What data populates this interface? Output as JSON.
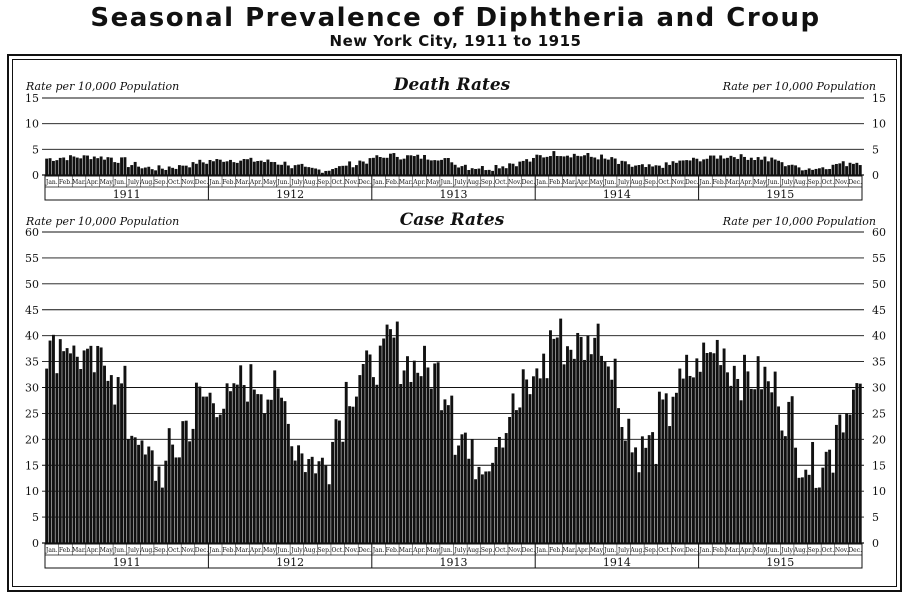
{
  "title": "Seasonal Prevalence of Diphtheria and Croup",
  "subtitle": "New York City, 1911 to 1915",
  "chart_data": [
    {
      "type": "bar",
      "title": "Death Rates",
      "ylabel_left": "Rate per 10,000 Population",
      "ylabel_right": "Rate per 10,000 Population",
      "ylim": [
        0,
        15
      ],
      "yticks": [
        0,
        5,
        10,
        15
      ],
      "grid": true,
      "months": [
        "Jan.",
        "Feb.",
        "Mar.",
        "Apr.",
        "May",
        "Jun.",
        "July",
        "Aug.",
        "Sep.",
        "Oct.",
        "Nov.",
        "Dec."
      ],
      "years": [
        "1911",
        "1912",
        "1913",
        "1914",
        "1915"
      ],
      "monthly_levels": [
        [
          3.2,
          3.4,
          3.5,
          3.6,
          3.4,
          2.9,
          2.0,
          1.4,
          1.3,
          1.6,
          2.0,
          2.5
        ],
        [
          2.8,
          3.0,
          2.9,
          2.8,
          2.6,
          2.3,
          1.6,
          1.1,
          1.0,
          1.5,
          2.1,
          2.7
        ],
        [
          3.4,
          3.8,
          3.6,
          3.5,
          3.4,
          2.9,
          2.0,
          1.5,
          1.4,
          1.8,
          2.3,
          2.8
        ],
        [
          3.7,
          4.2,
          4.0,
          3.8,
          3.5,
          3.0,
          2.2,
          1.6,
          1.5,
          1.9,
          2.5,
          2.9
        ],
        [
          3.2,
          3.6,
          3.7,
          3.5,
          3.3,
          2.9,
          2.1,
          1.4,
          1.3,
          1.7,
          2.2,
          2.5
        ]
      ]
    },
    {
      "type": "bar",
      "title": "Case Rates",
      "ylabel_left": "Rate per 10,000 Population",
      "ylabel_right": "Rate per 10,000 Population",
      "ylim": [
        0,
        60
      ],
      "yticks": [
        0,
        5,
        10,
        15,
        20,
        25,
        30,
        35,
        40,
        45,
        50,
        55,
        60
      ],
      "grid": true,
      "months": [
        "Jan.",
        "Feb.",
        "Mar.",
        "Apr.",
        "May",
        "Jun.",
        "July",
        "Aug.",
        "Sep.",
        "Oct.",
        "Nov.",
        "Dec."
      ],
      "years": [
        "1911",
        "1912",
        "1913",
        "1914",
        "1915"
      ],
      "monthly_levels": [
        [
          37,
          39,
          36,
          34,
          35,
          30,
          22,
          16,
          14,
          18,
          23,
          28
        ],
        [
          28,
          27,
          31,
          31,
          29,
          27,
          19,
          16,
          15,
          24,
          30,
          33
        ],
        [
          35,
          39,
          35,
          34,
          33,
          30,
          21,
          16,
          17,
          22,
          26,
          30
        ],
        [
          34,
          40,
          38,
          38,
          40,
          36,
          24,
          18,
          19,
          25,
          30,
          33
        ],
        [
          36,
          38,
          34,
          32,
          32,
          30,
          25,
          17,
          15,
          17,
          25,
          29
        ]
      ]
    }
  ]
}
